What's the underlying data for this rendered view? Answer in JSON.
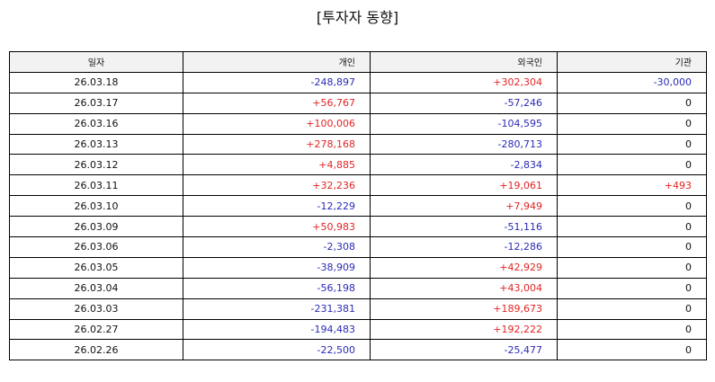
{
  "title": "[투자자 동향]",
  "colors": {
    "positive": "#e32424",
    "negative": "#2a2ab8",
    "header_bg": "#f2f2f2"
  },
  "table": {
    "headers": {
      "date": "일자",
      "individual": "개인",
      "foreign": "외국인",
      "institution": "기관"
    },
    "rows": [
      {
        "date": "26.03.18",
        "individual": "-248,897",
        "foreign": "+302,304",
        "institution": "-30,000"
      },
      {
        "date": "26.03.17",
        "individual": "+56,767",
        "foreign": "-57,246",
        "institution": "0"
      },
      {
        "date": "26.03.16",
        "individual": "+100,006",
        "foreign": "-104,595",
        "institution": "0"
      },
      {
        "date": "26.03.13",
        "individual": "+278,168",
        "foreign": "-280,713",
        "institution": "0"
      },
      {
        "date": "26.03.12",
        "individual": "+4,885",
        "foreign": "-2,834",
        "institution": "0"
      },
      {
        "date": "26.03.11",
        "individual": "+32,236",
        "foreign": "+19,061",
        "institution": "+493"
      },
      {
        "date": "26.03.10",
        "individual": "-12,229",
        "foreign": "+7,949",
        "institution": "0"
      },
      {
        "date": "26.03.09",
        "individual": "+50,983",
        "foreign": "-51,116",
        "institution": "0"
      },
      {
        "date": "26.03.06",
        "individual": "-2,308",
        "foreign": "-12,286",
        "institution": "0"
      },
      {
        "date": "26.03.05",
        "individual": "-38,909",
        "foreign": "+42,929",
        "institution": "0"
      },
      {
        "date": "26.03.04",
        "individual": "-56,198",
        "foreign": "+43,004",
        "institution": "0"
      },
      {
        "date": "26.03.03",
        "individual": "-231,381",
        "foreign": "+189,673",
        "institution": "0"
      },
      {
        "date": "26.02.27",
        "individual": "-194,483",
        "foreign": "+192,222",
        "institution": "0"
      },
      {
        "date": "26.02.26",
        "individual": "-22,500",
        "foreign": "-25,477",
        "institution": "0"
      }
    ]
  }
}
